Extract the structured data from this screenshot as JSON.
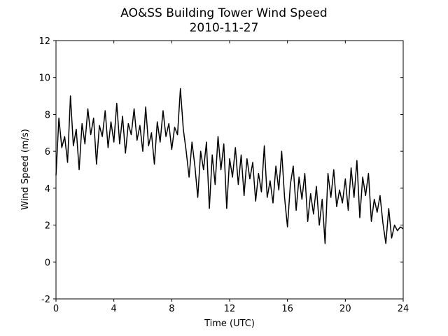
{
  "chart_data": {
    "type": "line",
    "title": "AO&SS Building Tower Wind Speed",
    "subtitle": "2010-11-27",
    "xlabel": "Time (UTC)",
    "ylabel": "Wind Speed (m/s)",
    "xlim": [
      0,
      24
    ],
    "xticks": [
      0,
      4,
      8,
      12,
      16,
      20,
      24
    ],
    "ylim": [
      -2,
      12
    ],
    "yticks": [
      -2,
      0,
      2,
      4,
      6,
      8,
      10,
      12
    ],
    "grid": false,
    "x": [
      0.0,
      0.2,
      0.4,
      0.6,
      0.8,
      1.0,
      1.2,
      1.4,
      1.6,
      1.8,
      2.0,
      2.2,
      2.4,
      2.6,
      2.8,
      3.0,
      3.2,
      3.4,
      3.6,
      3.8,
      4.0,
      4.2,
      4.4,
      4.6,
      4.8,
      5.0,
      5.2,
      5.4,
      5.6,
      5.8,
      6.0,
      6.2,
      6.4,
      6.6,
      6.8,
      7.0,
      7.2,
      7.4,
      7.6,
      7.8,
      8.0,
      8.2,
      8.4,
      8.6,
      8.8,
      9.0,
      9.2,
      9.4,
      9.6,
      9.8,
      10.0,
      10.2,
      10.4,
      10.6,
      10.8,
      11.0,
      11.2,
      11.4,
      11.6,
      11.8,
      12.0,
      12.2,
      12.4,
      12.6,
      12.8,
      13.0,
      13.2,
      13.4,
      13.6,
      13.8,
      14.0,
      14.2,
      14.4,
      14.6,
      14.8,
      15.0,
      15.2,
      15.4,
      15.6,
      15.8,
      16.0,
      16.2,
      16.4,
      16.6,
      16.8,
      17.0,
      17.2,
      17.4,
      17.6,
      17.8,
      18.0,
      18.2,
      18.4,
      18.6,
      18.8,
      19.0,
      19.2,
      19.4,
      19.6,
      19.8,
      20.0,
      20.2,
      20.4,
      20.6,
      20.8,
      21.0,
      21.2,
      21.4,
      21.6,
      21.8,
      22.0,
      22.2,
      22.4,
      22.6,
      22.8,
      23.0,
      23.2,
      23.4,
      23.6,
      23.8,
      24.0
    ],
    "series": [
      {
        "color": "#000000",
        "values": [
          4.7,
          7.8,
          6.2,
          6.8,
          5.4,
          9.0,
          6.3,
          7.2,
          5.0,
          7.5,
          6.4,
          8.3,
          6.9,
          7.8,
          5.3,
          7.4,
          6.8,
          8.2,
          6.2,
          7.6,
          6.5,
          8.6,
          6.4,
          7.9,
          5.9,
          7.5,
          6.9,
          8.3,
          6.6,
          7.4,
          6.0,
          8.4,
          6.3,
          7.0,
          5.3,
          7.6,
          6.5,
          8.2,
          6.8,
          7.5,
          6.1,
          7.3,
          6.9,
          9.4,
          7.2,
          6.0,
          4.6,
          6.5,
          5.2,
          3.5,
          6.0,
          5.0,
          6.5,
          2.9,
          5.8,
          4.2,
          6.8,
          5.0,
          6.4,
          2.9,
          5.6,
          4.6,
          6.2,
          4.2,
          5.8,
          3.6,
          5.6,
          4.5,
          5.4,
          3.3,
          4.8,
          3.8,
          6.3,
          3.5,
          4.4,
          3.2,
          5.2,
          3.9,
          6.0,
          3.5,
          1.9,
          4.2,
          5.2,
          2.8,
          4.6,
          3.4,
          4.8,
          2.2,
          3.7,
          2.6,
          4.1,
          2.0,
          3.4,
          1.0,
          4.8,
          3.5,
          5.0,
          3.0,
          3.9,
          3.2,
          4.5,
          2.8,
          5.1,
          3.5,
          5.5,
          2.4,
          4.6,
          3.6,
          4.8,
          2.2,
          3.4,
          2.7,
          3.6,
          2.1,
          1.0,
          2.9,
          1.3,
          2.0,
          1.7,
          1.9,
          1.8
        ]
      }
    ]
  }
}
